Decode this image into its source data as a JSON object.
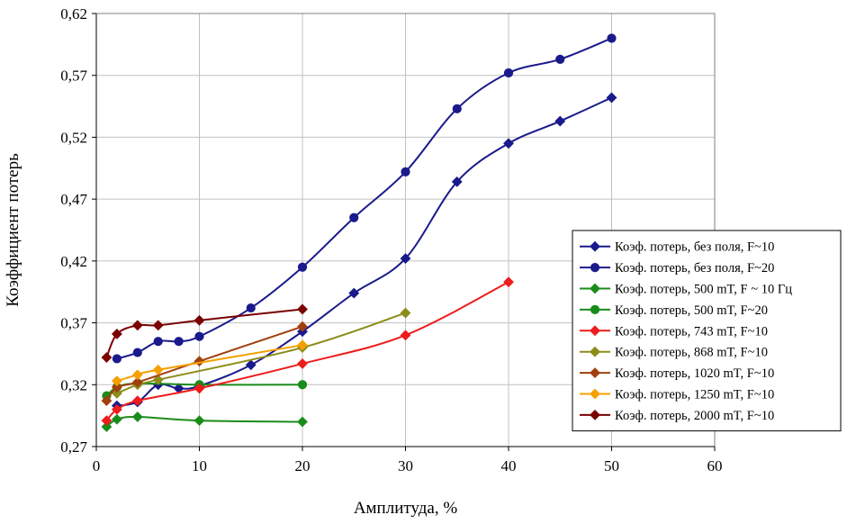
{
  "chart_data": {
    "type": "line",
    "title": "",
    "xlabel": "Амплитуда, %",
    "ylabel": "Коэффициент потерь",
    "xlim": [
      0,
      60
    ],
    "ylim": [
      0.27,
      0.62
    ],
    "x_ticks": [
      0,
      10,
      20,
      30,
      40,
      50,
      60
    ],
    "x_tick_labels": [
      "0",
      "10",
      "20",
      "30",
      "40",
      "50",
      "60"
    ],
    "y_ticks": [
      0.27,
      0.32,
      0.37,
      0.42,
      0.47,
      0.52,
      0.57,
      0.62
    ],
    "y_tick_labels": [
      "0,27",
      "0,32",
      "0,37",
      "0,42",
      "0,47",
      "0,52",
      "0,57",
      "0,62"
    ],
    "grid": true,
    "legend_position": "right",
    "series": [
      {
        "name": "Коэф. потерь, без поля, F~10",
        "color": "#1a1a8c",
        "marker": "diamond",
        "x": [
          2,
          4,
          6,
          8,
          10,
          15,
          20,
          25,
          30,
          35,
          40,
          45,
          50
        ],
        "y": [
          0.303,
          0.306,
          0.32,
          0.317,
          0.319,
          0.336,
          0.363,
          0.394,
          0.422,
          0.484,
          0.515,
          0.533,
          0.552
        ]
      },
      {
        "name": "Коэф. потерь, без поля, F~20",
        "color": "#1a1a8c",
        "marker": "circle",
        "x": [
          2,
          4,
          6,
          8,
          10,
          15,
          20,
          25,
          30,
          35,
          40,
          45,
          50
        ],
        "y": [
          0.341,
          0.346,
          0.355,
          0.355,
          0.359,
          0.382,
          0.415,
          0.455,
          0.492,
          0.543,
          0.572,
          0.583,
          0.6
        ]
      },
      {
        "name": "Коэф. потерь, 500 mT, F ~ 10 Гц",
        "color": "#1a8c1a",
        "marker": "diamond",
        "x": [
          1,
          2,
          4,
          10,
          20
        ],
        "y": [
          0.286,
          0.292,
          0.294,
          0.291,
          0.29
        ]
      },
      {
        "name": "Коэф. потерь, 500 mT, F~20",
        "color": "#1a8c1a",
        "marker": "circle",
        "x": [
          1,
          2,
          4,
          10,
          20
        ],
        "y": [
          0.311,
          0.318,
          0.321,
          0.32,
          0.32
        ]
      },
      {
        "name": "Коэф. потерь, 743 mT, F~10",
        "color": "#ee1c1c",
        "marker": "diamond",
        "x": [
          1,
          2,
          4,
          10,
          20,
          30,
          40
        ],
        "y": [
          0.291,
          0.3,
          0.307,
          0.317,
          0.337,
          0.36,
          0.403
        ]
      },
      {
        "name": "Коэф. потерь, 868 mT, F~10",
        "color": "#8c8c1a",
        "marker": "diamond",
        "x": [
          2,
          4,
          6,
          20,
          30
        ],
        "y": [
          0.313,
          0.32,
          0.324,
          0.35,
          0.378
        ]
      },
      {
        "name": "Коэф. потерь, 1020 mT, F~10",
        "color": "#a0400e",
        "marker": "diamond",
        "x": [
          1,
          2,
          4,
          10,
          20
        ],
        "y": [
          0.307,
          0.318,
          0.322,
          0.339,
          0.367
        ]
      },
      {
        "name": "Коэф. потерь, 1250 mT, F~10",
        "color": "#f5a000",
        "marker": "diamond",
        "x": [
          2,
          4,
          6,
          20
        ],
        "y": [
          0.323,
          0.328,
          0.332,
          0.352
        ]
      },
      {
        "name": "Коэф. потерь, 2000 mT, F~10",
        "color": "#7a0000",
        "marker": "diamond",
        "x": [
          1,
          2,
          4,
          6,
          10,
          20
        ],
        "y": [
          0.342,
          0.361,
          0.368,
          0.368,
          0.372,
          0.381
        ]
      }
    ]
  }
}
